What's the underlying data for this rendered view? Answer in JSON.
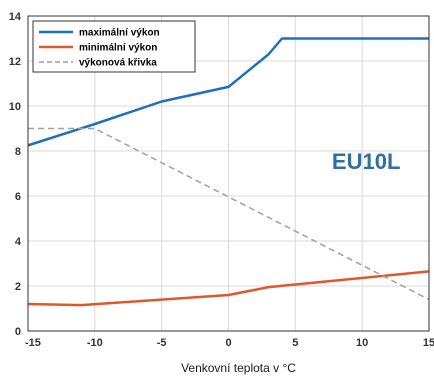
{
  "chart_data": {
    "type": "line",
    "title": "",
    "xlabel": "Venkovní teplota v °C",
    "ylabel": "",
    "xlim": [
      -15,
      15
    ],
    "ylim": [
      0,
      14
    ],
    "xticks": [
      "-15",
      "-10",
      "-5",
      "0",
      "5",
      "10",
      "15"
    ],
    "yticks": [
      "0",
      "2",
      "4",
      "6",
      "8",
      "10",
      "12",
      "14"
    ],
    "grid": true,
    "legend_position": "top-left",
    "annotation": {
      "text": "EU10L",
      "color": "#2f6fa8"
    },
    "series": [
      {
        "name": "maximální výkon",
        "color": "#1f6fbf",
        "style": "solid",
        "x": [
          -15,
          -10,
          -5,
          0,
          3,
          4,
          15
        ],
        "y": [
          8.25,
          9.2,
          10.2,
          10.85,
          12.3,
          13.0,
          13.0
        ]
      },
      {
        "name": "minimální výkon",
        "color": "#e0582a",
        "style": "solid",
        "x": [
          -15,
          -11,
          0,
          3,
          15
        ],
        "y": [
          1.2,
          1.15,
          1.6,
          1.95,
          2.65
        ]
      },
      {
        "name": "výkonová křivka",
        "color": "#a0a0a0",
        "style": "dashed",
        "x": [
          -15,
          -10,
          15
        ],
        "y": [
          9.0,
          9.0,
          1.4
        ]
      }
    ]
  }
}
